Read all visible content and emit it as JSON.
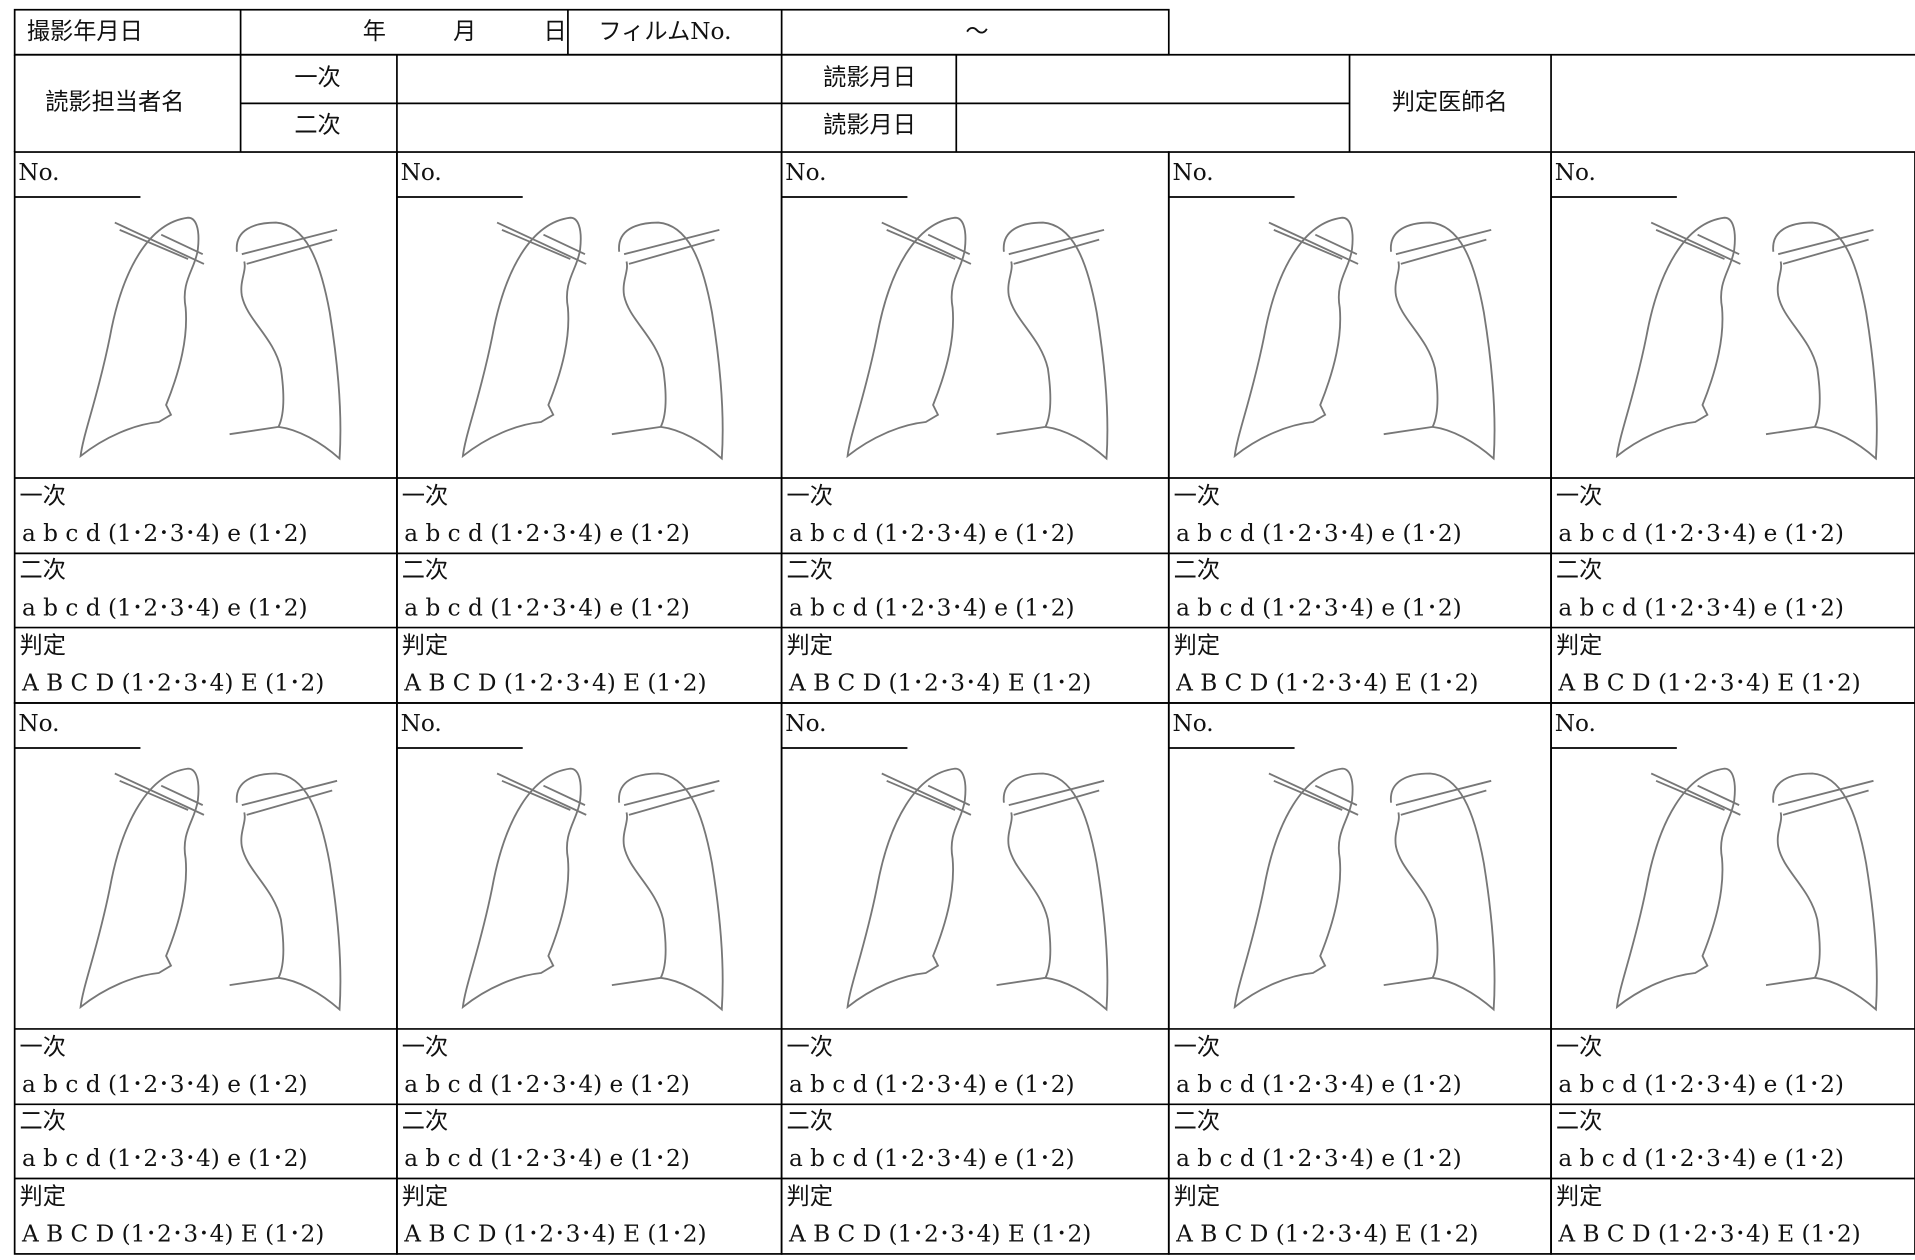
{
  "header": {
    "date_label": "撮影年月日",
    "year": "年",
    "month": "月",
    "day": "日",
    "film_label": "フィルムNo.",
    "film_range": "～",
    "reader_label": "読影担当者名",
    "first": "一次",
    "second": "二次",
    "read_date_1": "読影月日",
    "read_date_2": "読影月日",
    "doctor_label": "判定医師名"
  },
  "cells": [
    {
      "no": "No.",
      "first_label": "一次",
      "first_options": "a b c d (1･2･3･4) e (1･2)",
      "second_label": "二次",
      "second_options": "a b c d (1･2･3･4) e (1･2)",
      "judgment_label": "判定",
      "judgment_options": "A B C D (1･2･3･4) E (1･2)"
    },
    {
      "no": "No.",
      "first_label": "一次",
      "first_options": "a b c d (1･2･3･4) e (1･2)",
      "second_label": "二次",
      "second_options": "a b c d (1･2･3･4) e (1･2)",
      "judgment_label": "判定",
      "judgment_options": "A B C D (1･2･3･4) E (1･2)"
    },
    {
      "no": "No.",
      "first_label": "一次",
      "first_options": "a b c d (1･2･3･4) e (1･2)",
      "second_label": "二次",
      "second_options": "a b c d (1･2･3･4) e (1･2)",
      "judgment_label": "判定",
      "judgment_options": "A B C D (1･2･3･4) E (1･2)"
    },
    {
      "no": "No.",
      "first_label": "一次",
      "first_options": "a b c d (1･2･3･4) e (1･2)",
      "second_label": "二次",
      "second_options": "a b c d (1･2･3･4) e (1･2)",
      "judgment_label": "判定",
      "judgment_options": "A B C D (1･2･3･4) E (1･2)"
    },
    {
      "no": "No.",
      "first_label": "一次",
      "first_options": "a b c d (1･2･3･4) e (1･2)",
      "second_label": "二次",
      "second_options": "a b c d (1･2･3･4) e (1･2)",
      "judgment_label": "判定",
      "judgment_options": "A B C D (1･2･3･4) E (1･2)"
    },
    {
      "no": "No.",
      "first_label": "一次",
      "first_options": "a b c d (1･2･3･4) e (1･2)",
      "second_label": "二次",
      "second_options": "a b c d (1･2･3･4) e (1･2)",
      "judgment_label": "判定",
      "judgment_options": "A B C D (1･2･3･4) E (1･2)"
    },
    {
      "no": "No.",
      "first_label": "一次",
      "first_options": "a b c d (1･2･3･4) e (1･2)",
      "second_label": "二次",
      "second_options": "a b c d (1･2･3･4) e (1･2)",
      "judgment_label": "判定",
      "judgment_options": "A B C D (1･2･3･4) E (1･2)"
    },
    {
      "no": "No.",
      "first_label": "一次",
      "first_options": "a b c d (1･2･3･4) e (1･2)",
      "second_label": "二次",
      "second_options": "a b c d (1･2･3･4) e (1･2)",
      "judgment_label": "判定",
      "judgment_options": "A B C D (1･2･3･4) E (1･2)"
    },
    {
      "no": "No.",
      "first_label": "一次",
      "first_options": "a b c d (1･2･3･4) e (1･2)",
      "second_label": "二次",
      "second_options": "a b c d (1･2･3･4) e (1･2)",
      "judgment_label": "判定",
      "judgment_options": "A B C D (1･2･3･4) E (1･2)"
    },
    {
      "no": "No.",
      "first_label": "一次",
      "first_options": "a b c d (1･2･3･4) e (1･2)",
      "second_label": "二次",
      "second_options": "a b c d (1･2･3･4) e (1･2)",
      "judgment_label": "判定",
      "judgment_options": "A B C D (1･2･3･4) E (1･2)"
    }
  ]
}
